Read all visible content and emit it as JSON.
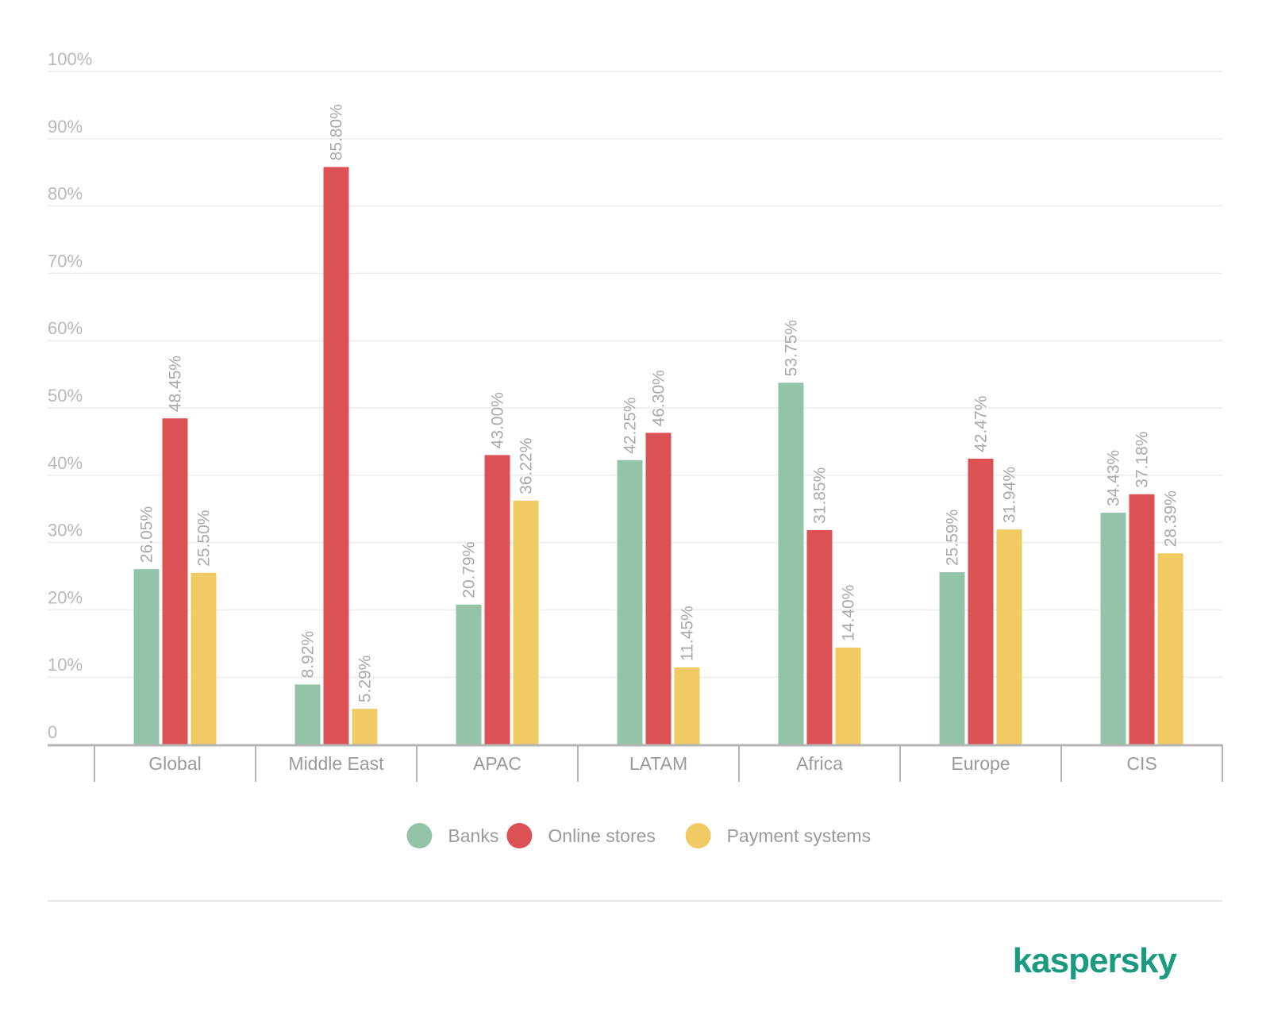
{
  "colors": {
    "banks": "#93c4a9",
    "online_stores": "#dc5254",
    "payment_systems": "#f0ca62",
    "grid": "#ececec",
    "axis": "#b5b5b5",
    "logo": "#1a9a80"
  },
  "brand": {
    "logo_text": "kaspersky"
  },
  "chart_data": {
    "type": "bar",
    "title": "",
    "xlabel": "",
    "ylabel": "",
    "ylim": [
      0,
      100
    ],
    "y_ticks": [
      {
        "value": 0,
        "label": "0"
      },
      {
        "value": 10,
        "label": "10%"
      },
      {
        "value": 20,
        "label": "20%"
      },
      {
        "value": 30,
        "label": "30%"
      },
      {
        "value": 40,
        "label": "40%"
      },
      {
        "value": 50,
        "label": "50%"
      },
      {
        "value": 60,
        "label": "60%"
      },
      {
        "value": 70,
        "label": "70%"
      },
      {
        "value": 80,
        "label": "80%"
      },
      {
        "value": 90,
        "label": "90%"
      },
      {
        "value": 100,
        "label": "100%"
      }
    ],
    "grid": true,
    "legend_position": "bottom-center",
    "categories": [
      "Global",
      "Middle East",
      "APAC",
      "LATAM",
      "Africa",
      "Europe",
      "CIS"
    ],
    "series": [
      {
        "name": "Banks",
        "color_key": "banks",
        "values": [
          26.05,
          8.92,
          20.79,
          42.25,
          53.75,
          25.59,
          34.43
        ],
        "labels": [
          "26.05%",
          "8.92%",
          "20.79%",
          "42.25%",
          "53.75%",
          "25.59%",
          "34.43%"
        ]
      },
      {
        "name": "Online stores",
        "color_key": "online_stores",
        "values": [
          48.45,
          85.8,
          43.0,
          46.3,
          31.85,
          42.47,
          37.18
        ],
        "labels": [
          "48.45%",
          "85.80%",
          "43.00%",
          "46.30%",
          "31.85%",
          "42.47%",
          "37.18%"
        ]
      },
      {
        "name": "Payment systems",
        "color_key": "payment_systems",
        "values": [
          25.5,
          5.29,
          36.22,
          11.45,
          14.4,
          31.94,
          28.39
        ],
        "labels": [
          "25.50%",
          "5.29%",
          "36.22%",
          "11.45%",
          "14.40%",
          "31.94%",
          "28.39%"
        ]
      }
    ]
  }
}
